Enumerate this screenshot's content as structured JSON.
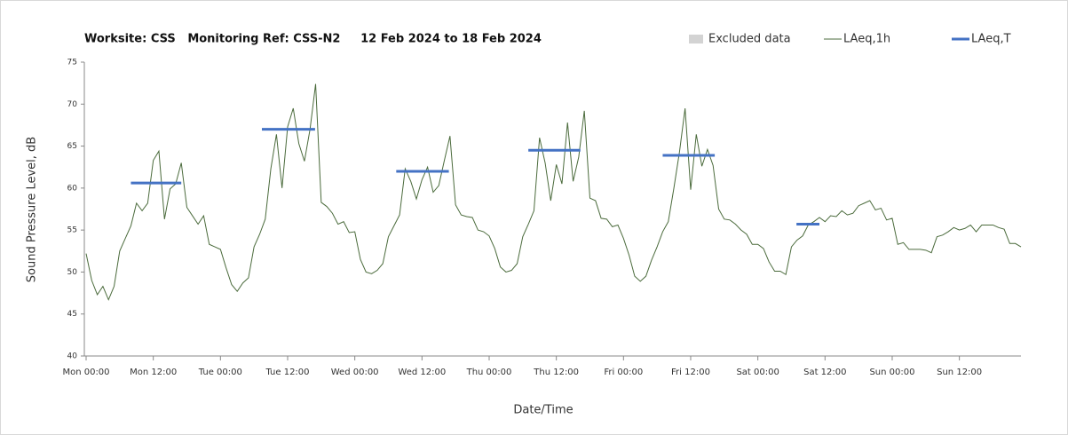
{
  "chart_data": {
    "type": "line",
    "title": "Worksite: CSS   Monitoring Ref: CSS-N2     12 Feb 2024 to 18 Feb 2024",
    "x_label": "Date/Time",
    "y_label": "Sound Pressure Level, dB",
    "x": [
      0,
      1,
      2,
      3,
      4,
      5,
      6,
      7,
      8,
      9,
      10,
      11,
      12,
      13,
      14,
      15,
      16,
      17,
      18,
      19,
      20,
      21,
      22,
      23,
      24,
      25,
      26,
      27,
      28,
      29,
      30,
      31,
      32,
      33,
      34,
      35,
      36,
      37,
      38,
      39,
      40,
      41,
      42,
      43,
      44,
      45,
      46,
      47,
      48,
      49,
      50,
      51,
      52,
      53,
      54,
      55,
      56,
      57,
      58,
      59,
      60,
      61,
      62,
      63,
      64,
      65,
      66,
      67,
      68,
      69,
      70,
      71,
      72,
      73,
      74,
      75,
      76,
      77,
      78,
      79,
      80,
      81,
      82,
      83,
      84,
      85,
      86,
      87,
      88,
      89,
      90,
      91,
      92,
      93,
      94,
      95,
      96,
      97,
      98,
      99,
      100,
      101,
      102,
      103,
      104,
      105,
      106,
      107,
      108,
      109,
      110,
      111,
      112,
      113,
      114,
      115,
      116,
      117,
      118,
      119,
      120,
      121,
      122,
      123,
      124,
      125,
      126,
      127,
      128,
      129,
      130,
      131,
      132,
      133,
      134,
      135,
      136,
      137,
      138,
      139,
      140,
      141,
      142,
      143,
      144,
      145,
      146,
      147,
      148,
      149,
      150,
      151,
      152,
      153,
      154,
      155,
      156,
      157,
      158,
      159,
      160,
      161,
      162,
      163,
      164,
      165,
      166,
      167
    ],
    "series": [
      {
        "name": "Excluded data",
        "color": "#d3d3d3"
      },
      {
        "name": "LAeq,1h",
        "color": "#4b6b3c",
        "values": [
          52.2,
          49,
          47.3,
          48.3,
          46.7,
          48.3,
          52.5,
          54,
          55.5,
          58.2,
          57.3,
          58.2,
          63.3,
          64.4,
          56.3,
          59.9,
          60.5,
          63,
          57.7,
          56.7,
          55.7,
          56.7,
          53.3,
          53,
          52.7,
          50.5,
          48.5,
          47.7,
          48.7,
          49.3,
          53,
          54.5,
          56.3,
          62.3,
          66.4,
          60,
          67.3,
          69.5,
          65.3,
          63.2,
          67,
          72.4,
          58.3,
          57.8,
          57,
          55.7,
          56,
          54.7,
          54.8,
          51.5,
          50,
          49.8,
          50.2,
          51,
          54.2,
          55.5,
          56.8,
          62.3,
          60.8,
          58.7,
          61,
          62.5,
          59.5,
          60.3,
          63.3,
          66.2,
          58,
          56.8,
          56.6,
          56.5,
          55,
          54.8,
          54.3,
          52.8,
          50.6,
          50,
          50.2,
          51,
          54.2,
          55.7,
          57.3,
          66,
          63,
          58.5,
          62.8,
          60.5,
          67.8,
          60.8,
          63.7,
          69.2,
          58.8,
          58.5,
          56.4,
          56.3,
          55.4,
          55.6,
          54,
          52,
          49.5,
          48.9,
          49.5,
          51.4,
          53,
          54.8,
          56,
          60,
          64.3,
          69.5,
          59.8,
          66.4,
          62.6,
          64.6,
          62.7,
          57.5,
          56.3,
          56.2,
          55.7,
          55,
          54.5,
          53.3,
          53.3,
          52.8,
          51.2,
          50.1,
          50.1,
          49.7,
          53,
          53.8,
          54.3,
          55.6,
          56,
          56.5,
          56,
          56.7,
          56.6,
          57.3,
          56.8,
          57,
          57.9,
          58.2,
          58.5,
          57.4,
          57.6,
          56.2,
          56.4,
          53.3,
          53.5,
          52.7,
          52.7,
          52.7,
          52.6,
          52.3,
          54.2,
          54.4,
          54.8,
          55.3,
          55,
          55.2,
          55.6,
          54.8,
          55.6,
          55.6,
          55.6,
          55.3,
          55.1,
          53.4,
          53.4,
          53
        ]
      },
      {
        "name": "LAeq,T",
        "color": "#4472c4",
        "segments": [
          {
            "x": [
              8,
              17
            ],
            "value": 60.6
          },
          {
            "x": [
              31.4,
              40.9
            ],
            "value": 67.0
          },
          {
            "x": [
              55.4,
              64.8
            ],
            "value": 62.0
          },
          {
            "x": [
              79,
              88.3
            ],
            "value": 64.5
          },
          {
            "x": [
              103,
              112.3
            ],
            "value": 63.9
          },
          {
            "x": [
              126.9,
              131
            ],
            "value": 55.7
          }
        ]
      }
    ],
    "xlim": [
      0,
      167
    ],
    "xticks": [
      {
        "value": 0,
        "label": "Mon 00:00"
      },
      {
        "value": 12,
        "label": "Mon 12:00"
      },
      {
        "value": 24,
        "label": "Tue 00:00"
      },
      {
        "value": 36,
        "label": "Tue 12:00"
      },
      {
        "value": 48,
        "label": "Wed 00:00"
      },
      {
        "value": 60,
        "label": "Wed 12:00"
      },
      {
        "value": 72,
        "label": "Thu 00:00"
      },
      {
        "value": 84,
        "label": "Thu 12:00"
      },
      {
        "value": 96,
        "label": "Fri 00:00"
      },
      {
        "value": 108,
        "label": "Fri 12:00"
      },
      {
        "value": 120,
        "label": "Sat 00:00"
      },
      {
        "value": 132,
        "label": "Sat 12:00"
      },
      {
        "value": 144,
        "label": "Sun 00:00"
      },
      {
        "value": 156,
        "label": "Sun 12:00"
      }
    ],
    "ylim": [
      40,
      75
    ],
    "yticks": [
      40,
      45,
      50,
      55,
      60,
      65,
      70,
      75
    ],
    "grid": false
  }
}
